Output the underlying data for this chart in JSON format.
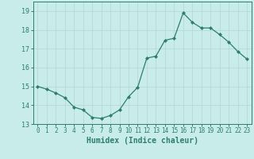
{
  "x": [
    0,
    1,
    2,
    3,
    4,
    5,
    6,
    7,
    8,
    9,
    10,
    11,
    12,
    13,
    14,
    15,
    16,
    17,
    18,
    19,
    20,
    21,
    22,
    23
  ],
  "y": [
    15.0,
    14.85,
    14.65,
    14.4,
    13.9,
    13.75,
    13.35,
    13.3,
    13.45,
    13.75,
    14.45,
    14.95,
    16.5,
    16.6,
    17.45,
    17.55,
    18.9,
    18.4,
    18.1,
    18.1,
    17.75,
    17.35,
    16.85,
    16.45
  ],
  "line_color": "#2e7d6e",
  "marker": "D",
  "marker_size": 2.0,
  "bg_color": "#c8ecea",
  "grid_color": "#b8d8d6",
  "xlabel": "Humidex (Indice chaleur)",
  "ylim": [
    13,
    19.5
  ],
  "xlim": [
    -0.5,
    23.5
  ],
  "yticks": [
    13,
    14,
    15,
    16,
    17,
    18,
    19
  ],
  "xticks": [
    0,
    1,
    2,
    3,
    4,
    5,
    6,
    7,
    8,
    9,
    10,
    11,
    12,
    13,
    14,
    15,
    16,
    17,
    18,
    19,
    20,
    21,
    22,
    23
  ],
  "tick_color": "#2e7d6e",
  "label_color": "#2e7d6e",
  "spine_color": "#2e7d6e",
  "tick_fontsize": 5.5,
  "xlabel_fontsize": 7.0
}
